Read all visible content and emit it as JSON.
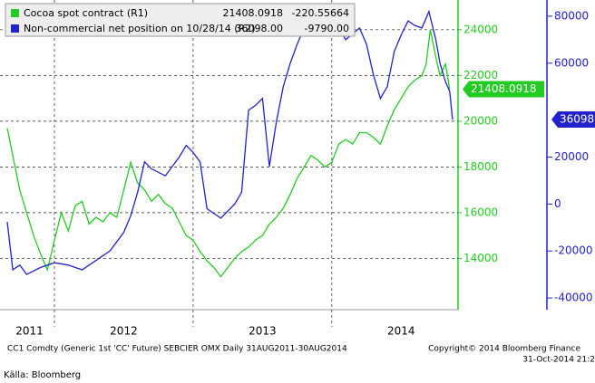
{
  "chart_data": {
    "type": "line",
    "legend": [
      {
        "name": "Cocoa spot contract (R1)",
        "last": "21408.0918",
        "change": "-220.55664"
      },
      {
        "name": "Non-commercial net position on 10/28/14 (R2)",
        "last": "36098.00",
        "change": "-9790.00"
      }
    ],
    "series": [
      {
        "name": "Cocoa spot contract (R1)",
        "color": "#22cc22",
        "end_label": "21408.0918",
        "x": [
          2011.66,
          2011.7,
          2011.75,
          2011.8,
          2011.85,
          2011.9,
          2011.95,
          2012.0,
          2012.05,
          2012.1,
          2012.15,
          2012.2,
          2012.25,
          2012.3,
          2012.35,
          2012.4,
          2012.45,
          2012.5,
          2012.55,
          2012.6,
          2012.65,
          2012.7,
          2012.75,
          2012.8,
          2012.85,
          2012.9,
          2012.95,
          2013.0,
          2013.05,
          2013.1,
          2013.15,
          2013.2,
          2013.25,
          2013.3,
          2013.35,
          2013.4,
          2013.45,
          2013.5,
          2013.55,
          2013.6,
          2013.65,
          2013.7,
          2013.75,
          2013.8,
          2013.85,
          2013.9,
          2013.95,
          2014.0,
          2014.05,
          2014.1,
          2014.15,
          2014.2,
          2014.25,
          2014.3,
          2014.35,
          2014.4,
          2014.45,
          2014.5,
          2014.55,
          2014.6,
          2014.65,
          2014.68,
          2014.71,
          2014.75,
          2014.78,
          2014.82,
          2014.85
        ],
        "values": [
          19700,
          18500,
          17000,
          16000,
          15000,
          14200,
          13500,
          14800,
          16000,
          15200,
          16300,
          16500,
          15500,
          15800,
          15600,
          16000,
          15800,
          17000,
          18200,
          17300,
          17000,
          16500,
          16800,
          16400,
          16200,
          15600,
          15000,
          14800,
          14300,
          13900,
          13600,
          13200,
          13600,
          14000,
          14300,
          14500,
          14800,
          15000,
          15500,
          15800,
          16200,
          16800,
          17500,
          18000,
          18500,
          18300,
          18000,
          18200,
          19000,
          19200,
          19000,
          19500,
          19500,
          19300,
          19000,
          19800,
          20500,
          21000,
          21500,
          21800,
          22000,
          22500,
          24000,
          22800,
          22000,
          22500,
          21400
        ]
      },
      {
        "name": "Non-commercial net position on 10/28/14 (R2)",
        "color": "#2222cc",
        "axis": "y2",
        "end_label": "36098",
        "x": [
          2011.66,
          2011.7,
          2011.75,
          2011.8,
          2011.9,
          2012.0,
          2012.1,
          2012.2,
          2012.3,
          2012.4,
          2012.5,
          2012.55,
          2012.6,
          2012.65,
          2012.7,
          2012.8,
          2012.9,
          2012.95,
          2013.0,
          2013.05,
          2013.1,
          2013.2,
          2013.3,
          2013.35,
          2013.4,
          2013.45,
          2013.5,
          2013.55,
          2013.6,
          2013.65,
          2013.7,
          2013.75,
          2013.8,
          2013.87,
          2013.95,
          2014.0,
          2014.1,
          2014.2,
          2014.25,
          2014.3,
          2014.35,
          2014.4,
          2014.45,
          2014.5,
          2014.55,
          2014.6,
          2014.65,
          2014.7,
          2014.75,
          2014.78,
          2014.82,
          2014.85,
          2014.87
        ],
        "values": [
          -7600,
          -28000,
          -26000,
          -30000,
          -27000,
          -25000,
          -26000,
          -28000,
          -24000,
          -20000,
          -12000,
          -5000,
          5000,
          18000,
          15000,
          12000,
          20000,
          25000,
          22000,
          18000,
          -2000,
          -6000,
          0,
          5000,
          40000,
          42000,
          45000,
          16000,
          35000,
          50000,
          60000,
          68000,
          75000,
          85000,
          82000,
          80000,
          70000,
          75000,
          68000,
          55000,
          45000,
          50000,
          65000,
          72000,
          78000,
          76000,
          75000,
          82000,
          70000,
          60000,
          52000,
          48000,
          36000
        ]
      }
    ],
    "xlim": [
      2011.66,
      2014.91
    ],
    "ylim": [
      11800,
      25300
    ],
    "y2lim": [
      -44600,
      86900
    ],
    "xticks": [
      {
        "value": 2011.82,
        "label": "2011"
      },
      {
        "value": 2012.5,
        "label": "2012"
      },
      {
        "value": 2013.5,
        "label": "2013"
      },
      {
        "value": 2014.5,
        "label": "2014"
      }
    ],
    "xgrid": [
      2012,
      2013,
      2014
    ],
    "yticks": [
      14000,
      16000,
      18000,
      20000,
      22000,
      24000
    ],
    "y2ticks": [
      -40000,
      -20000,
      0,
      20000,
      60000,
      80000
    ],
    "grid": true,
    "footer_left": "CC1 Comdty (Generic 1st 'CC' Future) SEBCIER OMX  Daily 31AUG2011-30AUG2014",
    "footer_right": "Copyright© 2014 Bloomberg Finance",
    "footer_date": "31-Oct-2014 21:2",
    "source": "Källa: Bloomberg"
  }
}
